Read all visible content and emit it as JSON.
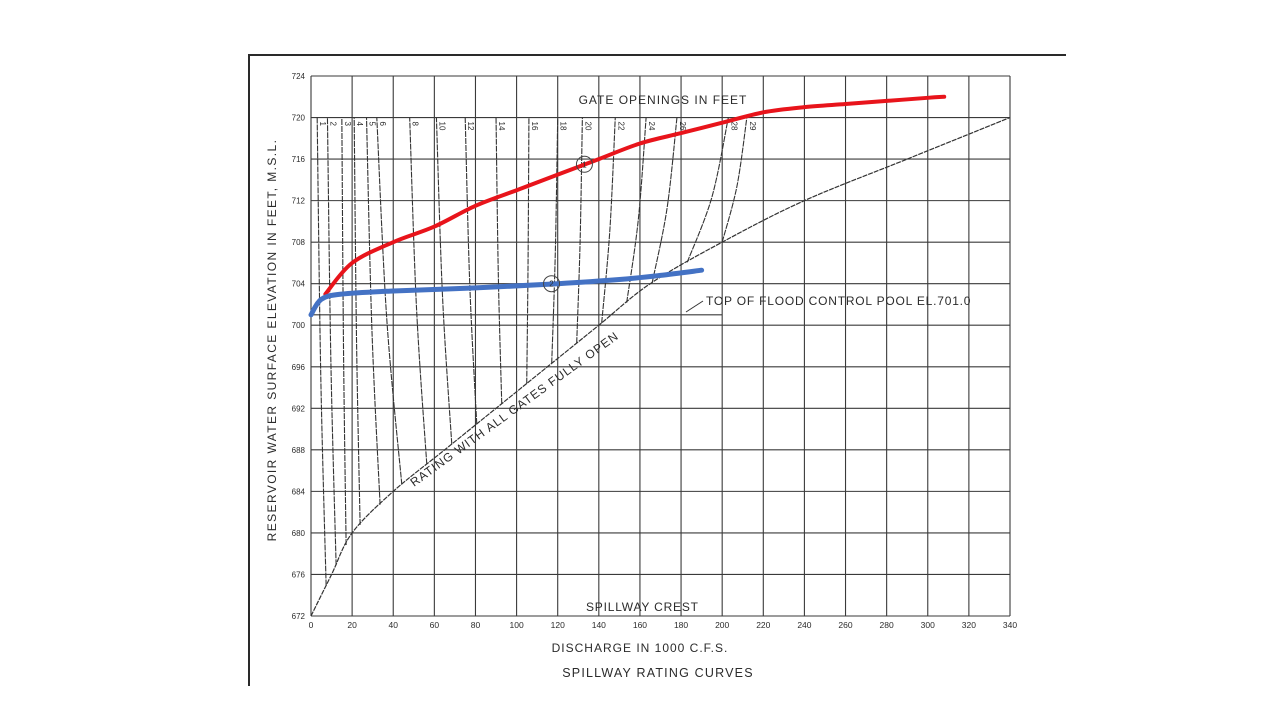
{
  "chart_data": {
    "type": "line",
    "title": "SPILLWAY RATING CURVES",
    "xlabel": "DISCHARGE IN 1000 C.F.S.",
    "ylabel": "RESERVOIR WATER SURFACE ELEVATION IN FEET, M.S.L.",
    "xlim": [
      0,
      340
    ],
    "ylim": [
      672,
      724
    ],
    "grid": true,
    "x_ticks": [
      0,
      20,
      40,
      60,
      80,
      100,
      120,
      140,
      160,
      180,
      200,
      220,
      240,
      260,
      280,
      300,
      320,
      340
    ],
    "y_ticks": [
      672,
      676,
      680,
      684,
      688,
      692,
      696,
      700,
      704,
      708,
      712,
      716,
      720,
      724
    ],
    "gate_openings_label": "GATE OPENINGS IN FEET",
    "gate_openings": [
      1,
      2,
      3,
      4,
      5,
      6,
      8,
      10,
      12,
      14,
      16,
      18,
      20,
      22,
      24,
      26,
      28,
      29
    ],
    "gate_curves_top_x_at_720": [
      3,
      8,
      15,
      21,
      27,
      32,
      48,
      61,
      75,
      90,
      106,
      120,
      132,
      148,
      163,
      178,
      203,
      212
    ],
    "all_gates_open_curve": {
      "name": "RATING WITH ALL GATES FULLY OPEN",
      "points": [
        [
          0,
          672
        ],
        [
          10,
          676
        ],
        [
          20,
          680
        ],
        [
          40,
          684
        ],
        [
          65,
          688
        ],
        [
          90,
          692
        ],
        [
          115,
          696
        ],
        [
          140,
          700
        ],
        [
          165,
          704
        ],
        [
          200,
          708
        ],
        [
          240,
          712
        ],
        [
          290,
          716
        ],
        [
          340,
          720
        ]
      ]
    },
    "series": [
      {
        "name": "red-curve",
        "color": "#e8141b",
        "points": [
          [
            7,
            703
          ],
          [
            20,
            706
          ],
          [
            40,
            708
          ],
          [
            60,
            709.5
          ],
          [
            80,
            711.5
          ],
          [
            100,
            713
          ],
          [
            120,
            714.5
          ],
          [
            140,
            716
          ],
          [
            160,
            717.5
          ],
          [
            180,
            718.5
          ],
          [
            200,
            719.5
          ],
          [
            220,
            720.5
          ],
          [
            240,
            721
          ],
          [
            260,
            721.3
          ],
          [
            280,
            721.6
          ],
          [
            300,
            721.9
          ],
          [
            308,
            722
          ]
        ]
      },
      {
        "name": "blue-curve",
        "color": "#4472c4",
        "points": [
          [
            0,
            701
          ],
          [
            5,
            702.5
          ],
          [
            15,
            703
          ],
          [
            40,
            703.3
          ],
          [
            80,
            703.6
          ],
          [
            120,
            704
          ],
          [
            150,
            704.4
          ],
          [
            170,
            704.8
          ],
          [
            190,
            705.3
          ]
        ]
      }
    ],
    "annotations": [
      {
        "text": "TOP OF FLOOD CONTROL POOL EL.701.0",
        "x": 185,
        "y": 701
      },
      {
        "text": "SPILLWAY CREST",
        "x": 122,
        "y": 672
      },
      {
        "text": "RATING WITH ALL GATES FULLY OPEN",
        "x": 140,
        "y": 696
      },
      {
        "text": "circled marker 1",
        "x": 133,
        "y": 715.5
      },
      {
        "text": "circled marker 2",
        "x": 117,
        "y": 704
      }
    ],
    "reference_lines": [
      {
        "name": "flood-control-pool",
        "y": 701
      }
    ]
  },
  "labels": {
    "gate_openings": "GATE OPENINGS IN FEET",
    "flood_pool": "TOP OF FLOOD CONTROL POOL EL.701.0",
    "spillway_crest": "SPILLWAY CREST",
    "all_gates": "RATING WITH ALL GATES FULLY OPEN",
    "xlabel": "DISCHARGE IN 1000 C.F.S.",
    "title": "SPILLWAY RATING CURVES",
    "ylabel": "RESERVOIR WATER SURFACE ELEVATION IN FEET, M.S.L."
  }
}
